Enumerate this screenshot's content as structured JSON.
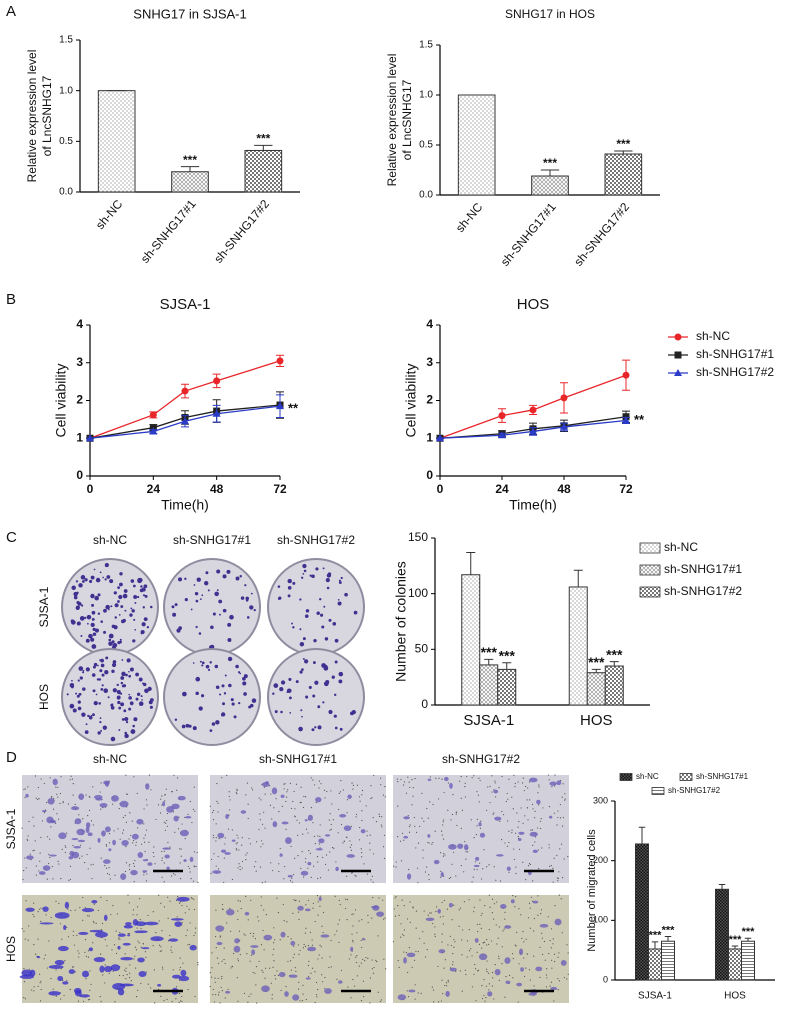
{
  "labels": {
    "panel_letters": [
      "A",
      "B",
      "C",
      "D"
    ],
    "colony_columns": [
      "sh-NC",
      "sh-SNHG17#1",
      "sh-SNHG17#2"
    ],
    "colony_rows": [
      "SJSA-1",
      "HOS"
    ],
    "transwell_columns": [
      "sh-NC",
      "sh-SNHG17#1",
      "sh-SNHG17#2"
    ],
    "transwell_rows": [
      "SJSA-1",
      "HOS"
    ]
  },
  "chart_data": [
    {
      "type": "bar",
      "title": "SNHG17 in SJSA-1",
      "ylabel": [
        "Relative expression level",
        "of LncSNHG17"
      ],
      "categories": [
        "sh-NC",
        "sh-SNHG17#1",
        "sh-SNHG17#2"
      ],
      "values": [
        1.0,
        0.2,
        0.41
      ],
      "errors": [
        0,
        0.05,
        0.05
      ],
      "significance": [
        null,
        "***",
        "***"
      ],
      "color": "#333333",
      "ylim": [
        0,
        1.5
      ],
      "yticks": [
        {
          "value": 0,
          "label": "0.0"
        },
        0.5,
        {
          "value": 1,
          "label": "1.0"
        },
        1.5
      ]
    },
    {
      "type": "bar",
      "title": "SNHG17 in HOS",
      "ylabel": [
        "Relative expression level",
        "of LncSNHG17"
      ],
      "categories": [
        "sh-NC",
        "sh-SNHG17#1",
        "sh-SNHG17#2"
      ],
      "values": [
        1.0,
        0.19,
        0.41
      ],
      "errors": [
        0,
        0.06,
        0.03
      ],
      "significance": [
        null,
        "***",
        "***"
      ],
      "color": "#333333",
      "ylim": [
        0,
        1.5
      ],
      "yticks": [
        {
          "value": 0,
          "label": "0.0"
        },
        0.5,
        {
          "value": 1,
          "label": "1.0"
        },
        1.5
      ]
    },
    {
      "type": "line",
      "title": "SJSA-1",
      "xlabel": "Time(h)",
      "ylabel": "Cell viability",
      "x": [
        0,
        24,
        36,
        48,
        72
      ],
      "xlim": [
        0,
        72
      ],
      "xticks": [
        0,
        24,
        48,
        72
      ],
      "ylim": [
        0,
        4
      ],
      "yticks": [
        0,
        1,
        2,
        3,
        4
      ],
      "annotation": "**",
      "series": [
        {
          "color": "#e8262a",
          "values": [
            1,
            1.62,
            2.25,
            2.52,
            3.05
          ],
          "errors": [
            0,
            0.08,
            0.18,
            0.18,
            0.15
          ]
        },
        {
          "color": "#222222",
          "values": [
            1,
            1.28,
            1.55,
            1.72,
            1.88
          ],
          "errors": [
            0,
            0.08,
            0.18,
            0.3,
            0.35
          ]
        },
        {
          "color": "#2a3bc8",
          "values": [
            1,
            1.18,
            1.45,
            1.65,
            1.85
          ],
          "errors": [
            0,
            0.05,
            0.15,
            0.22,
            0.3
          ]
        }
      ]
    },
    {
      "type": "line",
      "title": "HOS",
      "xlabel": "Time(h)",
      "ylabel": "Cell viability",
      "x": [
        0,
        24,
        36,
        48,
        72
      ],
      "xlim": [
        0,
        72
      ],
      "xticks": [
        0,
        24,
        48,
        72
      ],
      "ylim": [
        0,
        4
      ],
      "yticks": [
        0,
        1,
        2,
        3,
        4
      ],
      "annotation": "**",
      "legend": "right",
      "series": [
        {
          "name": "sh-NC",
          "color": "#e8262a",
          "values": [
            1,
            1.6,
            1.75,
            2.07,
            2.67
          ],
          "errors": [
            0,
            0.18,
            0.12,
            0.4,
            0.4
          ]
        },
        {
          "name": "sh-SNHG17#1",
          "color": "#222222",
          "values": [
            1,
            1.12,
            1.25,
            1.33,
            1.57
          ],
          "errors": [
            0,
            0.08,
            0.15,
            0.15,
            0.15
          ]
        },
        {
          "name": "sh-SNHG17#2",
          "color": "#2a3bc8",
          "values": [
            1,
            1.08,
            1.18,
            1.3,
            1.47
          ],
          "errors": [
            0,
            0.05,
            0.1,
            0.1,
            0.08
          ]
        }
      ]
    },
    {
      "type": "bar",
      "ylabel": "Number of colonies",
      "categories": [
        "SJSA-1",
        "HOS"
      ],
      "ylim": [
        0,
        150
      ],
      "yticks": [
        0,
        50,
        100,
        150
      ],
      "legend": "right",
      "series": [
        {
          "name": "sh-NC",
          "color": "#333333",
          "values": [
            117,
            106
          ],
          "errors": [
            20,
            15
          ],
          "significance": [
            null,
            null
          ]
        },
        {
          "name": "sh-SNHG17#1",
          "color": "#333333",
          "values": [
            36,
            29
          ],
          "errors": [
            5,
            3
          ],
          "significance": [
            "***",
            "***"
          ]
        },
        {
          "name": "sh-SNHG17#2",
          "color": "#333333",
          "values": [
            32,
            35
          ],
          "errors": [
            6,
            4
          ],
          "significance": [
            "***",
            "***"
          ]
        }
      ]
    },
    {
      "type": "bar",
      "ylabel": "Number of migrated cells",
      "categories": [
        "SJSA-1",
        "HOS"
      ],
      "ylim": [
        0,
        300
      ],
      "yticks": [
        0,
        100,
        200,
        300
      ],
      "legend": "top",
      "series": [
        {
          "name": "sh-NC",
          "color": "#333333",
          "values": [
            228,
            152
          ],
          "errors": [
            28,
            8
          ],
          "significance": [
            null,
            null
          ]
        },
        {
          "name": "sh-SNHG17#1",
          "color": "#333333",
          "values": [
            52,
            52
          ],
          "errors": [
            12,
            5
          ],
          "significance": [
            "***",
            "***"
          ]
        },
        {
          "name": "sh-SNHG17#2",
          "color": "#333333",
          "values": [
            65,
            65
          ],
          "errors": [
            8,
            5
          ],
          "significance": [
            "***",
            "***"
          ]
        }
      ]
    }
  ]
}
